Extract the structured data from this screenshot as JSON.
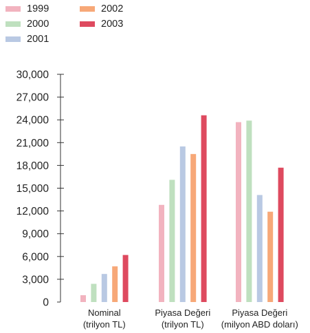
{
  "chart_data": {
    "type": "bar",
    "categories": [
      "Nominal\n(trilyon TL)",
      "Piyasa Değeri\n(trilyon TL)",
      "Piyasa Değeri\n(milyon ABD doları)"
    ],
    "series": [
      {
        "name": "1999",
        "color": "#f2b3bf",
        "values": [
          900,
          12800,
          23700
        ]
      },
      {
        "name": "2000",
        "color": "#bfe0bf",
        "values": [
          2400,
          16100,
          23900
        ]
      },
      {
        "name": "2001",
        "color": "#b9c9e3",
        "values": [
          3700,
          20500,
          14100
        ]
      },
      {
        "name": "2002",
        "color": "#f7a878",
        "values": [
          4700,
          19500,
          11900
        ]
      },
      {
        "name": "2003",
        "color": "#de4a5f",
        "values": [
          6200,
          24600,
          17700
        ]
      }
    ],
    "ylim": [
      0,
      30000
    ],
    "yticks": [
      "0",
      "3,000",
      "6,000",
      "9,000",
      "12,000",
      "15,000",
      "18,000",
      "21,000",
      "24,000",
      "27,000",
      "30,000"
    ],
    "legend_position": "top-left",
    "grid": false
  }
}
